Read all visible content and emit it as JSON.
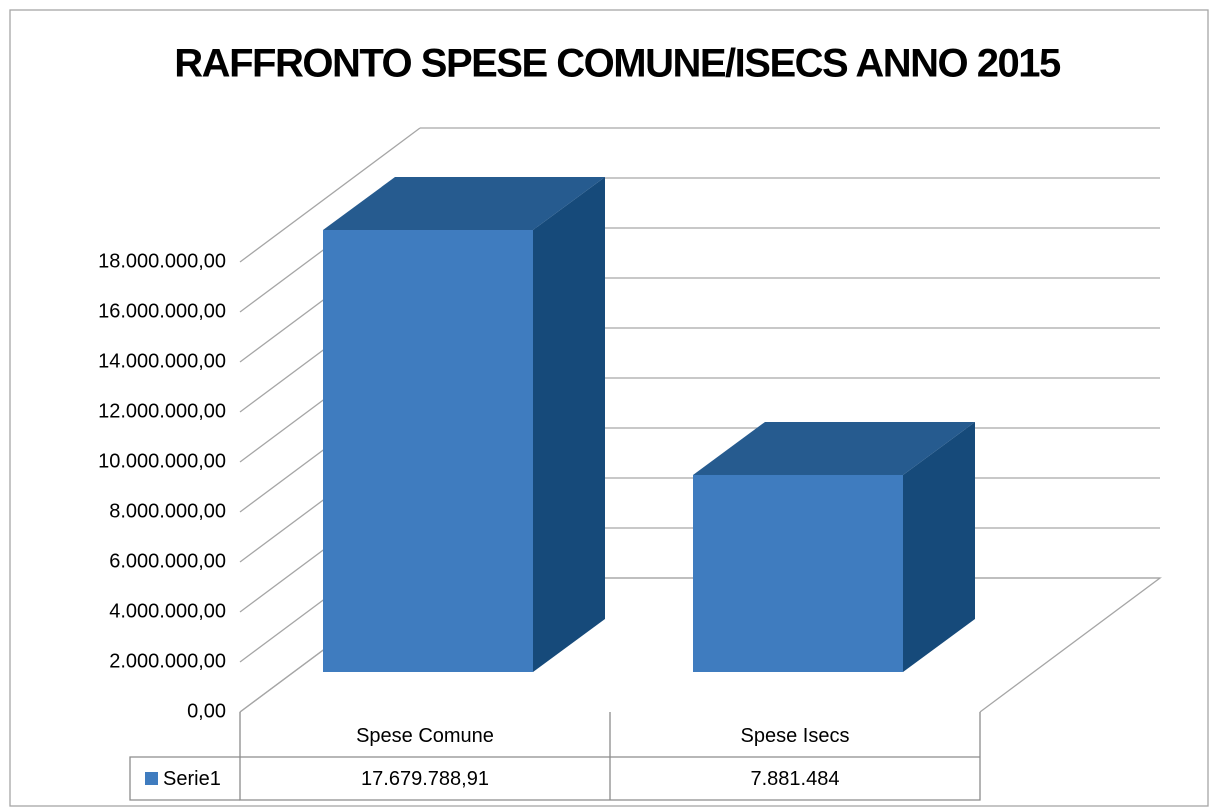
{
  "chart_data": {
    "type": "bar3d",
    "title": "RAFFRONTO SPESE COMUNE/ISECS ANNO 2015",
    "categories": [
      "Spese Comune",
      "Spese Isecs"
    ],
    "series": [
      {
        "name": "Serie1",
        "color": "#3f7cbf",
        "values": [
          17679788.91,
          7881484
        ],
        "value_labels": [
          "17.679.788,91",
          "7.881.484"
        ]
      }
    ],
    "ylim": [
      0,
      18000000
    ],
    "yticks": [
      {
        "value": 0,
        "label": "0,00"
      },
      {
        "value": 2000000,
        "label": "2.000.000,00"
      },
      {
        "value": 4000000,
        "label": "4.000.000,00"
      },
      {
        "value": 6000000,
        "label": "6.000.000,00"
      },
      {
        "value": 8000000,
        "label": "8.000.000,00"
      },
      {
        "value": 10000000,
        "label": "10.000.000,00"
      },
      {
        "value": 12000000,
        "label": "12.000.000,00"
      },
      {
        "value": 14000000,
        "label": "14.000.000,00"
      },
      {
        "value": 16000000,
        "label": "16.000.000,00"
      },
      {
        "value": 18000000,
        "label": "18.000.000,00"
      }
    ],
    "grid": true
  }
}
